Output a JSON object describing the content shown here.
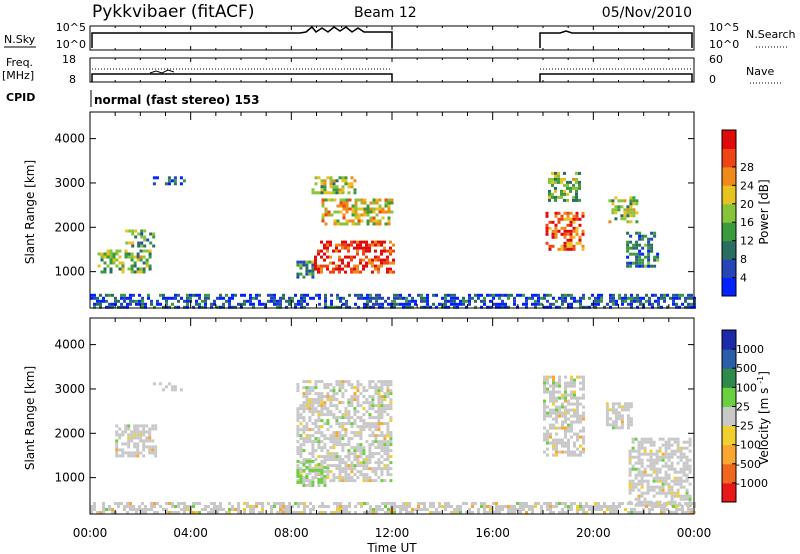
{
  "header": {
    "title": "Pykkvibaer (fitACF)",
    "beam": "Beam 12",
    "date": "05/Nov/2010"
  },
  "top_panels": {
    "nsky": {
      "label": "N.Sky",
      "left_ticks": [
        "10^5",
        "10^0"
      ],
      "right_label": "N.Search",
      "right_ticks": [
        "10^5",
        "10^0"
      ]
    },
    "freq": {
      "label_line1": "Freq.",
      "label_line2": "[MHz]",
      "left_ticks": [
        "18",
        "8"
      ],
      "right_label": "Nave",
      "right_ticks": [
        "60",
        "0"
      ]
    },
    "cpid": {
      "label": "CPID",
      "text": "normal (fast stereo) 153"
    }
  },
  "chart_data": [
    {
      "type": "heatmap",
      "name": "power",
      "ylabel": "Slant Range [km]",
      "yticks": [
        1000,
        2000,
        3000,
        4000
      ],
      "ylim": [
        180,
        4600
      ],
      "xlim_hours": [
        0,
        24
      ],
      "xticks": [
        "00:00",
        "04:00",
        "08:00",
        "12:00",
        "16:00",
        "20:00",
        "00:00"
      ],
      "xlabel": "Time UT",
      "data_gaps_hours": [
        [
          12.0,
          18.0
        ]
      ],
      "colorbar": {
        "label": "Power [dB]",
        "ticks": [
          "4",
          "8",
          "12",
          "16",
          "20",
          "24",
          "28"
        ],
        "colors": [
          "#0022ff",
          "#2446b8",
          "#2a6e62",
          "#3b9a3b",
          "#88c43a",
          "#e8c220",
          "#f08a18",
          "#ee4416",
          "#e00a0a"
        ]
      },
      "regions": [
        {
          "t": [
            0.3,
            2.4
          ],
          "r": [
            1000,
            1500
          ],
          "level": 0.45
        },
        {
          "t": [
            1.4,
            2.5
          ],
          "r": [
            1550,
            1950
          ],
          "level": 0.4
        },
        {
          "t": [
            2.5,
            3.8
          ],
          "r": [
            2950,
            3150
          ],
          "level": 0.2
        },
        {
          "t": [
            8.2,
            8.9
          ],
          "r": [
            850,
            1250
          ],
          "level": 0.35
        },
        {
          "t": [
            8.8,
            10.5
          ],
          "r": [
            2750,
            3150
          ],
          "level": 0.5
        },
        {
          "t": [
            9.2,
            12.0
          ],
          "r": [
            2050,
            2650
          ],
          "level": 0.6
        },
        {
          "t": [
            8.9,
            12.0
          ],
          "r": [
            1000,
            1700
          ],
          "level": 0.9
        },
        {
          "t": [
            18.1,
            19.6
          ],
          "r": [
            1500,
            2350
          ],
          "level": 0.8
        },
        {
          "t": [
            18.2,
            19.5
          ],
          "r": [
            2600,
            3250
          ],
          "level": 0.45
        },
        {
          "t": [
            20.6,
            21.7
          ],
          "r": [
            2100,
            2700
          ],
          "level": 0.5
        },
        {
          "t": [
            21.3,
            22.6
          ],
          "r": [
            1100,
            1900
          ],
          "level": 0.25
        },
        {
          "t": [
            0.0,
            24.0
          ],
          "r": [
            180,
            500
          ],
          "level": 0.15
        }
      ]
    },
    {
      "type": "heatmap",
      "name": "velocity",
      "ylabel": "Slant Range [km]",
      "yticks": [
        1000,
        2000,
        3000,
        4000
      ],
      "ylim": [
        180,
        4600
      ],
      "xlim_hours": [
        0,
        24
      ],
      "xticks": [
        "00:00",
        "04:00",
        "08:00",
        "12:00",
        "16:00",
        "20:00",
        "00:00"
      ],
      "xlabel": "Time UT",
      "data_gaps_hours": [
        [
          12.0,
          18.0
        ]
      ],
      "colorbar": {
        "label": "Velocity [m s^-1]",
        "ticks": [
          "1000",
          "500",
          "100",
          "25",
          "-25",
          "-100",
          "-500",
          "-1000"
        ],
        "colors": [
          "#1a2aa8",
          "#2a5ea8",
          "#2e8a4a",
          "#6ad040",
          "#c8c8c8",
          "#f0d030",
          "#f8a830",
          "#f06820",
          "#e81818"
        ]
      },
      "regions": [
        {
          "t": [
            1.0,
            2.6
          ],
          "r": [
            1500,
            2200
          ],
          "level": "grey"
        },
        {
          "t": [
            2.5,
            3.6
          ],
          "r": [
            2950,
            3150
          ],
          "level": "grey"
        },
        {
          "t": [
            8.2,
            12.0
          ],
          "r": [
            950,
            3200
          ],
          "level": "grey"
        },
        {
          "t": [
            8.2,
            9.4
          ],
          "r": [
            850,
            1400
          ],
          "level": "green"
        },
        {
          "t": [
            18.0,
            19.6
          ],
          "r": [
            1500,
            3300
          ],
          "level": "grey"
        },
        {
          "t": [
            20.5,
            21.5
          ],
          "r": [
            2100,
            2700
          ],
          "level": "grey"
        },
        {
          "t": [
            21.4,
            23.9
          ],
          "r": [
            350,
            1900
          ],
          "level": "grey"
        },
        {
          "t": [
            0.0,
            24.0
          ],
          "r": [
            180,
            450
          ],
          "level": "grey"
        }
      ]
    }
  ]
}
